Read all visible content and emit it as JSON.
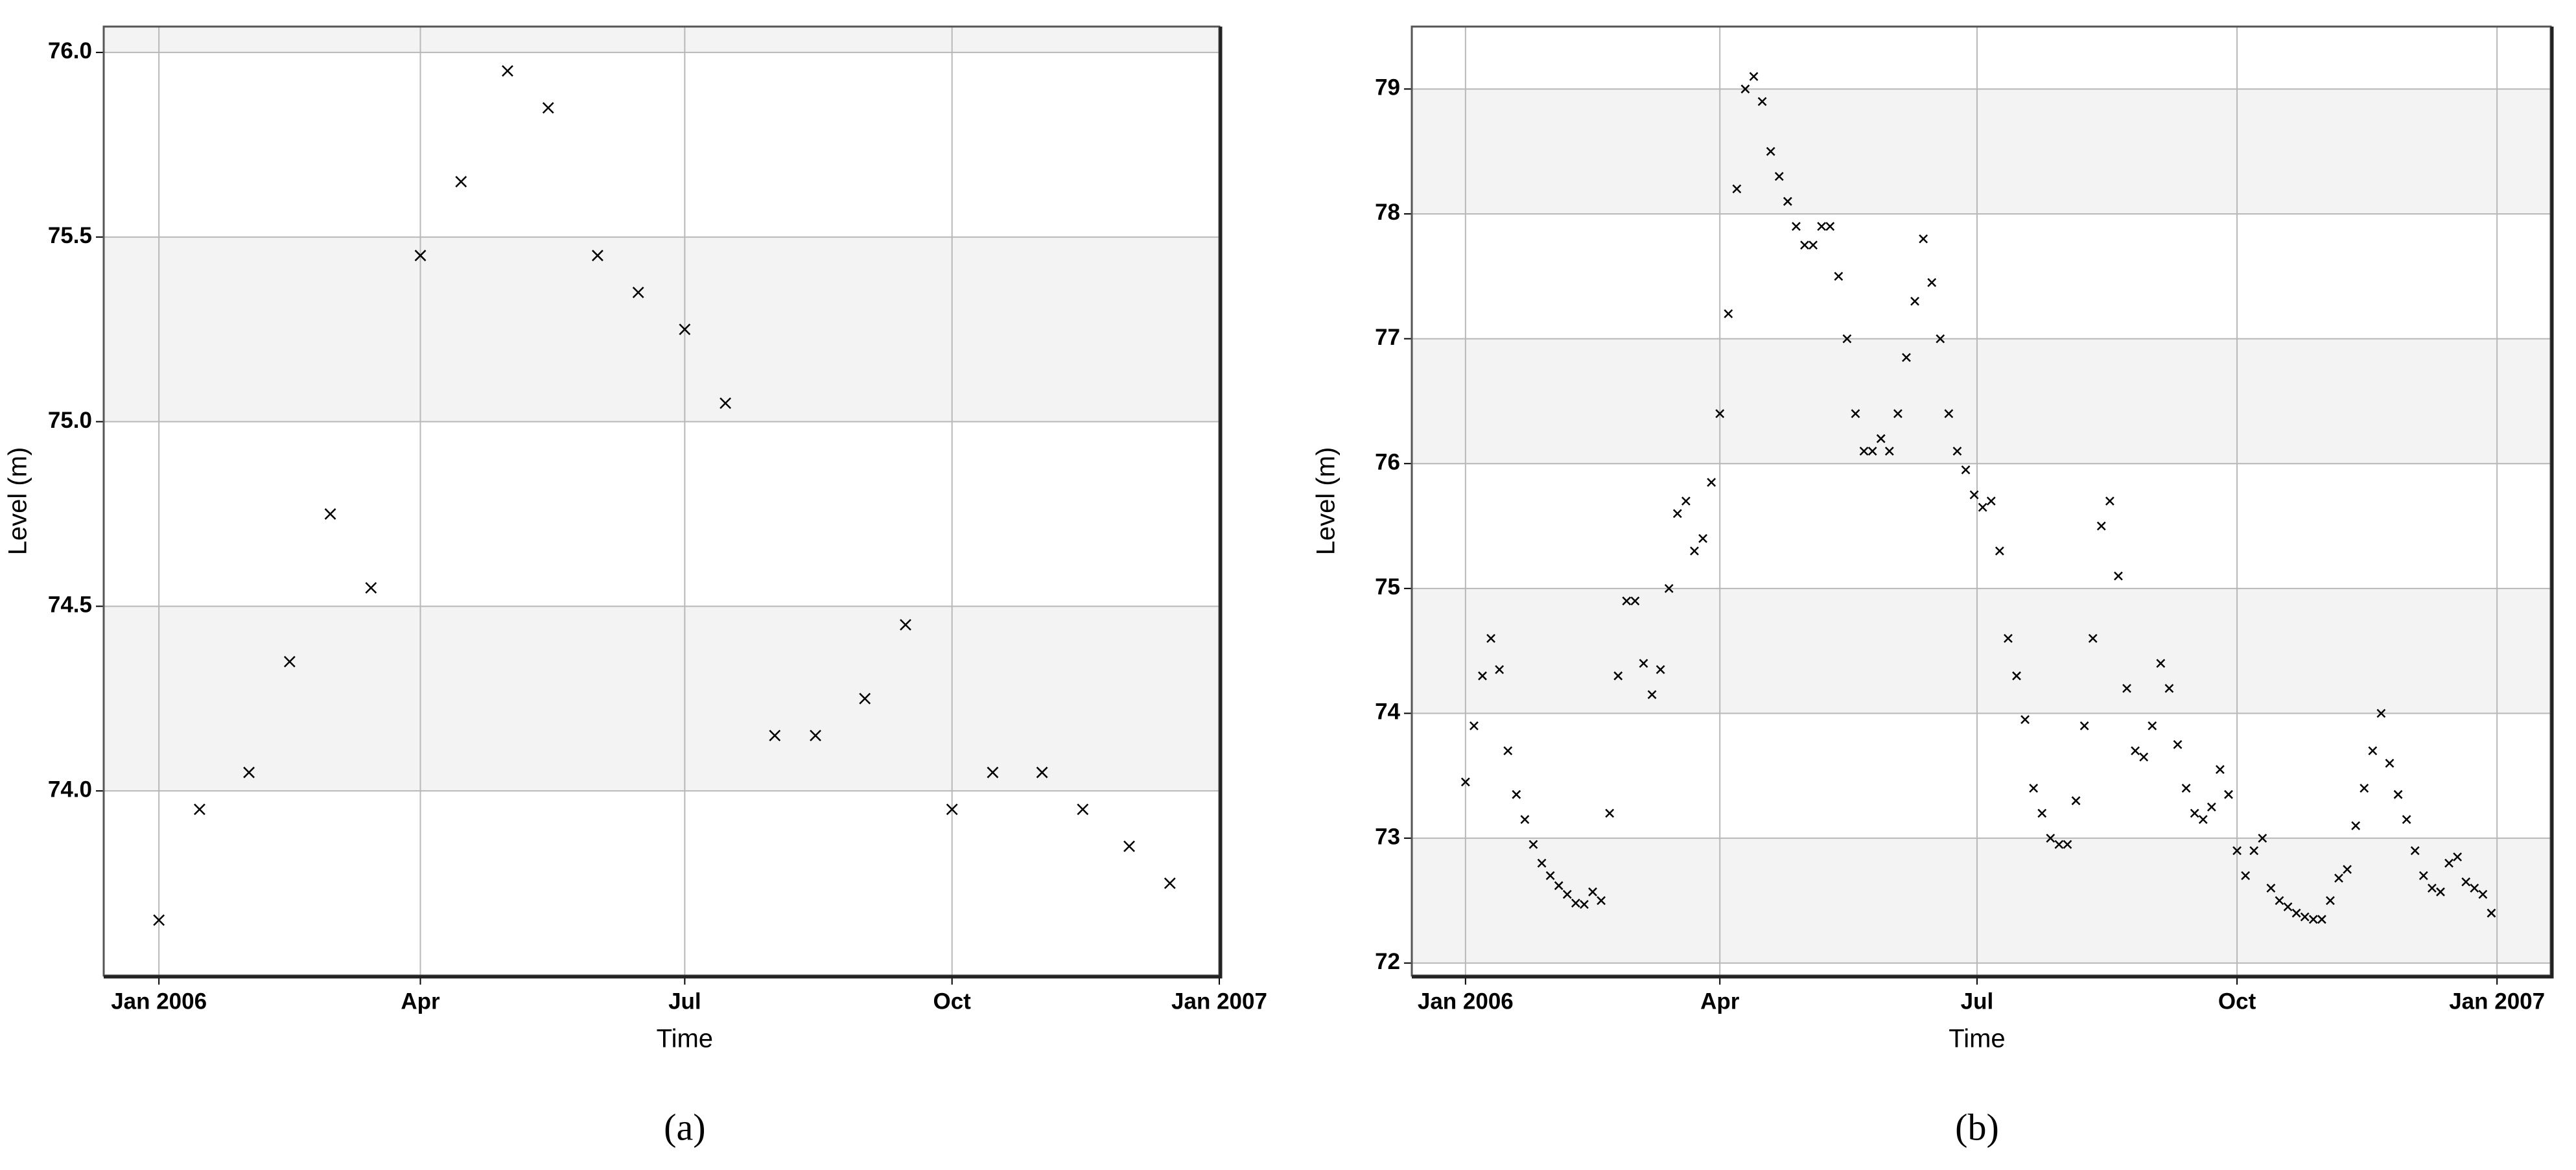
{
  "chart_data": [
    {
      "type": "line",
      "caption": "(a)",
      "xlabel": "Time",
      "ylabel": "Level (m)",
      "color": "#000000",
      "marker": "x",
      "grid": true,
      "xlim": [
        -19,
        365
      ],
      "xticks": [
        {
          "value": 0,
          "label": "Jan 2006"
        },
        {
          "value": 90,
          "label": "Apr"
        },
        {
          "value": 181,
          "label": "Jul"
        },
        {
          "value": 273,
          "label": "Oct"
        },
        {
          "value": 365,
          "label": "Jan 2007"
        }
      ],
      "ylim": [
        73.5,
        76.07
      ],
      "yticks": [
        {
          "value": 74,
          "label": "74.0"
        },
        {
          "value": 74.5,
          "label": "74.5"
        },
        {
          "value": 75,
          "label": "75.0"
        },
        {
          "value": 75.5,
          "label": "75.5"
        },
        {
          "value": 76,
          "label": "76.0"
        }
      ],
      "x": [
        0,
        14,
        31,
        45,
        59,
        73,
        90,
        104,
        120,
        134,
        151,
        165,
        181,
        195,
        212,
        226,
        243,
        257,
        273,
        287,
        304,
        318,
        334,
        348
      ],
      "values": [
        73.65,
        73.95,
        74.05,
        74.35,
        74.75,
        74.55,
        75.45,
        75.65,
        75.95,
        75.85,
        75.45,
        75.35,
        75.25,
        75.05,
        74.15,
        74.15,
        74.25,
        74.45,
        73.95,
        74.05,
        74.05,
        73.95,
        73.85,
        73.75
      ]
    },
    {
      "type": "line",
      "caption": "(b)",
      "xlabel": "Time",
      "ylabel": "Level (m)",
      "color": "#000000",
      "marker": "x",
      "grid": true,
      "xlim": [
        -19,
        384
      ],
      "xticks": [
        {
          "value": 0,
          "label": "Jan 2006"
        },
        {
          "value": 90,
          "label": "Apr"
        },
        {
          "value": 181,
          "label": "Jul"
        },
        {
          "value": 273,
          "label": "Oct"
        },
        {
          "value": 365,
          "label": "Jan 2007"
        }
      ],
      "ylim": [
        71.9,
        79.5
      ],
      "yticks": [
        72,
        73,
        74,
        75,
        76,
        77,
        78,
        79
      ],
      "x": [
        0,
        3,
        6,
        9,
        12,
        15,
        18,
        21,
        24,
        27,
        30,
        33,
        36,
        39,
        42,
        45,
        48,
        51,
        54,
        57,
        60,
        63,
        66,
        69,
        72,
        75,
        78,
        81,
        84,
        87,
        90,
        93,
        96,
        99,
        102,
        105,
        108,
        111,
        114,
        117,
        120,
        123,
        126,
        129,
        132,
        135,
        138,
        141,
        144,
        147,
        150,
        153,
        156,
        159,
        162,
        165,
        168,
        171,
        174,
        177,
        180,
        183,
        186,
        189,
        192,
        195,
        198,
        201,
        204,
        207,
        210,
        213,
        216,
        219,
        222,
        225,
        228,
        231,
        234,
        237,
        240,
        243,
        246,
        249,
        252,
        255,
        258,
        261,
        264,
        267,
        270,
        273,
        276,
        279,
        282,
        285,
        288,
        291,
        294,
        297,
        300,
        303,
        306,
        309,
        312,
        315,
        318,
        321,
        324,
        327,
        330,
        333,
        336,
        339,
        342,
        345,
        348,
        351,
        354,
        357,
        360,
        363
      ],
      "values": [
        73.45,
        73.9,
        74.3,
        74.6,
        74.35,
        73.7,
        73.35,
        73.15,
        72.95,
        72.8,
        72.7,
        72.62,
        72.55,
        72.48,
        72.47,
        72.57,
        72.5,
        73.2,
        74.3,
        74.9,
        74.9,
        74.4,
        74.15,
        74.35,
        75.0,
        75.6,
        75.7,
        75.3,
        75.4,
        75.85,
        76.4,
        77.2,
        78.2,
        79.0,
        79.1,
        78.9,
        78.5,
        78.3,
        78.1,
        77.9,
        77.75,
        77.75,
        77.9,
        77.9,
        77.5,
        77.0,
        76.4,
        76.1,
        76.1,
        76.2,
        76.1,
        76.4,
        76.85,
        77.3,
        77.8,
        77.45,
        77.0,
        76.4,
        76.1,
        75.95,
        75.75,
        75.65,
        75.7,
        75.3,
        74.6,
        74.3,
        73.95,
        73.4,
        73.2,
        73.0,
        72.95,
        72.95,
        73.3,
        73.9,
        74.6,
        75.5,
        75.7,
        75.1,
        74.2,
        73.7,
        73.65,
        73.9,
        74.4,
        74.2,
        73.75,
        73.4,
        73.2,
        73.15,
        73.25,
        73.55,
        73.35,
        72.9,
        72.7,
        72.9,
        73.0,
        72.6,
        72.5,
        72.45,
        72.4,
        72.37,
        72.35,
        72.35,
        72.5,
        72.68,
        72.75,
        73.1,
        73.4,
        73.7,
        74.0,
        73.6,
        73.35,
        73.15,
        72.9,
        72.7,
        72.6,
        72.57,
        72.8,
        72.85,
        72.65,
        72.6,
        72.55,
        72.4
      ]
    }
  ]
}
